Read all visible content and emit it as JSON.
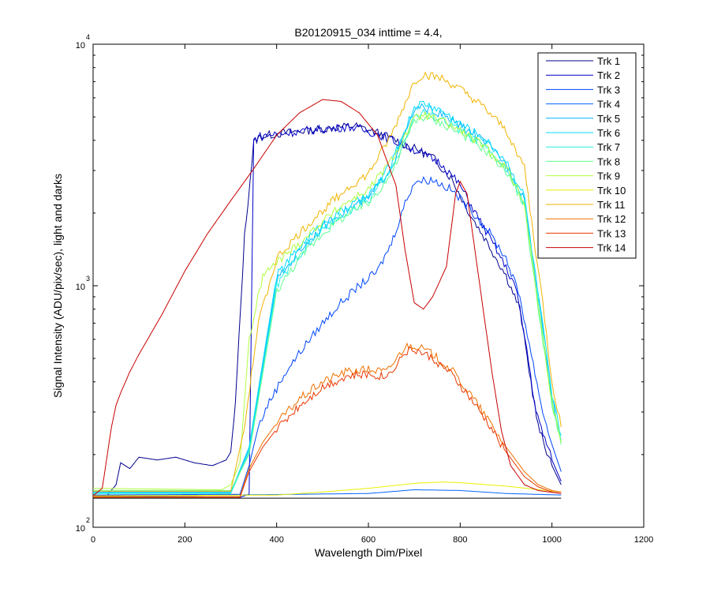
{
  "chart_data": {
    "type": "line",
    "title": "B20120915_034 inttime = 4.4,",
    "xlabel": "Wavelength Dim/Pixel",
    "ylabel": "Signal Intensity (ADU/pix/sec), light and darks",
    "xlim": [
      0,
      1200
    ],
    "ylim": [
      100,
      10000
    ],
    "yscale": "log",
    "grid": false,
    "legend_position": "top-right",
    "x_ticks": [
      "0",
      "200",
      "400",
      "600",
      "800",
      "1000",
      "1200"
    ],
    "y_ticks": [
      {
        "base": "10",
        "exp": "2"
      },
      {
        "base": "10",
        "exp": "3"
      },
      {
        "base": "10",
        "exp": "4"
      }
    ],
    "series": [
      {
        "name": "Trk 1",
        "color": "#00008f",
        "points": [
          [
            0,
            135
          ],
          [
            30,
            135
          ],
          [
            50,
            150
          ],
          [
            60,
            185
          ],
          [
            80,
            175
          ],
          [
            100,
            195
          ],
          [
            140,
            190
          ],
          [
            180,
            195
          ],
          [
            220,
            185
          ],
          [
            260,
            180
          ],
          [
            290,
            190
          ],
          [
            300,
            205
          ],
          [
            310,
            320
          ],
          [
            330,
            1600
          ],
          [
            350,
            3900
          ],
          [
            360,
            4100
          ],
          [
            380,
            4200
          ],
          [
            420,
            4300
          ],
          [
            470,
            4400
          ],
          [
            520,
            4500
          ],
          [
            570,
            4600
          ],
          [
            620,
            4300
          ],
          [
            660,
            4000
          ],
          [
            700,
            3700
          ],
          [
            740,
            3400
          ],
          [
            780,
            2800
          ],
          [
            820,
            2000
          ],
          [
            860,
            1500
          ],
          [
            900,
            1100
          ],
          [
            930,
            800
          ],
          [
            950,
            450
          ],
          [
            970,
            260
          ],
          [
            1000,
            180
          ],
          [
            1020,
            150
          ]
        ]
      },
      {
        "name": "Trk 2",
        "color": "#0000c8",
        "points": [
          [
            0,
            133
          ],
          [
            320,
            133
          ],
          [
            340,
            137
          ],
          [
            350,
            4000
          ],
          [
            360,
            4150
          ],
          [
            400,
            4250
          ],
          [
            450,
            4350
          ],
          [
            500,
            4450
          ],
          [
            560,
            4550
          ],
          [
            620,
            4250
          ],
          [
            680,
            3800
          ],
          [
            720,
            3500
          ],
          [
            760,
            3200
          ],
          [
            800,
            2600
          ],
          [
            840,
            1900
          ],
          [
            880,
            1400
          ],
          [
            920,
            1000
          ],
          [
            945,
            550
          ],
          [
            965,
            300
          ],
          [
            1000,
            190
          ],
          [
            1020,
            155
          ]
        ]
      },
      {
        "name": "Trk 3",
        "color": "#0046ff",
        "points": [
          [
            0,
            136
          ],
          [
            320,
            137
          ],
          [
            340,
            180
          ],
          [
            360,
            260
          ],
          [
            380,
            320
          ],
          [
            420,
            440
          ],
          [
            460,
            560
          ],
          [
            500,
            700
          ],
          [
            540,
            850
          ],
          [
            580,
            1000
          ],
          [
            620,
            1150
          ],
          [
            650,
            1500
          ],
          [
            680,
            2200
          ],
          [
            700,
            2700
          ],
          [
            740,
            2750
          ],
          [
            780,
            2500
          ],
          [
            820,
            2100
          ],
          [
            860,
            1700
          ],
          [
            900,
            1300
          ],
          [
            930,
            900
          ],
          [
            955,
            520
          ],
          [
            980,
            300
          ],
          [
            1000,
            220
          ],
          [
            1020,
            170
          ]
        ]
      },
      {
        "name": "Trk 4",
        "color": "#0064ff",
        "points": [
          [
            0,
            134
          ],
          [
            600,
            138
          ],
          [
            700,
            143
          ],
          [
            800,
            142
          ],
          [
            900,
            138
          ],
          [
            1020,
            136
          ]
        ]
      },
      {
        "name": "Trk 5",
        "color": "#00b4ff",
        "points": [
          [
            0,
            140
          ],
          [
            300,
            140
          ],
          [
            340,
            210
          ],
          [
            400,
            1050
          ],
          [
            450,
            1400
          ],
          [
            500,
            1750
          ],
          [
            550,
            2050
          ],
          [
            600,
            2300
          ],
          [
            650,
            3100
          ],
          [
            700,
            5300
          ],
          [
            720,
            5500
          ],
          [
            760,
            5100
          ],
          [
            800,
            4600
          ],
          [
            850,
            4000
          ],
          [
            900,
            3200
          ],
          [
            940,
            2300
          ],
          [
            960,
            1200
          ],
          [
            980,
            650
          ],
          [
            1000,
            340
          ],
          [
            1020,
            230
          ]
        ]
      },
      {
        "name": "Trk 6",
        "color": "#00dcff",
        "points": [
          [
            0,
            139
          ],
          [
            300,
            139
          ],
          [
            340,
            215
          ],
          [
            400,
            1100
          ],
          [
            450,
            1450
          ],
          [
            500,
            1800
          ],
          [
            550,
            2100
          ],
          [
            600,
            2350
          ],
          [
            650,
            3200
          ],
          [
            700,
            5500
          ],
          [
            720,
            5700
          ],
          [
            760,
            5300
          ],
          [
            800,
            4700
          ],
          [
            850,
            4100
          ],
          [
            900,
            3300
          ],
          [
            940,
            2350
          ],
          [
            960,
            1250
          ],
          [
            980,
            680
          ],
          [
            1000,
            350
          ],
          [
            1020,
            240
          ]
        ]
      },
      {
        "name": "Trk 7",
        "color": "#20f0e0",
        "points": [
          [
            0,
            138
          ],
          [
            300,
            138
          ],
          [
            340,
            205
          ],
          [
            400,
            1000
          ],
          [
            450,
            1350
          ],
          [
            500,
            1700
          ],
          [
            550,
            2000
          ],
          [
            600,
            2250
          ],
          [
            650,
            3000
          ],
          [
            700,
            5000
          ],
          [
            720,
            5200
          ],
          [
            760,
            4900
          ],
          [
            800,
            4400
          ],
          [
            850,
            3800
          ],
          [
            900,
            3050
          ],
          [
            940,
            2200
          ],
          [
            960,
            1150
          ],
          [
            980,
            620
          ],
          [
            1000,
            330
          ],
          [
            1020,
            225
          ]
        ]
      },
      {
        "name": "Trk 8",
        "color": "#60ff90",
        "points": [
          [
            0,
            142
          ],
          [
            300,
            142
          ],
          [
            340,
            200
          ],
          [
            400,
            950
          ],
          [
            450,
            1300
          ],
          [
            500,
            1650
          ],
          [
            550,
            1950
          ],
          [
            600,
            2200
          ],
          [
            650,
            2900
          ],
          [
            700,
            4800
          ],
          [
            720,
            5000
          ],
          [
            760,
            4700
          ],
          [
            800,
            4300
          ],
          [
            850,
            3700
          ],
          [
            900,
            3000
          ],
          [
            940,
            2150
          ],
          [
            960,
            1100
          ],
          [
            980,
            600
          ],
          [
            1000,
            320
          ],
          [
            1020,
            220
          ]
        ]
      },
      {
        "name": "Trk 9",
        "color": "#b0ff40",
        "points": [
          [
            0,
            145
          ],
          [
            280,
            143
          ],
          [
            300,
            150
          ],
          [
            320,
            185
          ],
          [
            340,
            600
          ],
          [
            370,
            1100
          ],
          [
            400,
            1250
          ],
          [
            450,
            1500
          ],
          [
            500,
            1850
          ],
          [
            550,
            2200
          ],
          [
            600,
            2500
          ],
          [
            650,
            3300
          ],
          [
            700,
            4900
          ],
          [
            720,
            5100
          ],
          [
            760,
            4800
          ],
          [
            800,
            4400
          ],
          [
            850,
            3800
          ],
          [
            900,
            3100
          ],
          [
            940,
            2200
          ],
          [
            960,
            1150
          ],
          [
            980,
            620
          ],
          [
            1000,
            330
          ],
          [
            1020,
            225
          ]
        ]
      },
      {
        "name": "Trk 10",
        "color": "#e8f000",
        "points": [
          [
            0,
            135
          ],
          [
            400,
            136
          ],
          [
            500,
            140
          ],
          [
            600,
            145
          ],
          [
            700,
            152
          ],
          [
            760,
            154
          ],
          [
            800,
            153
          ],
          [
            900,
            148
          ],
          [
            1020,
            140
          ]
        ]
      },
      {
        "name": "Trk 11",
        "color": "#f0b400",
        "points": [
          [
            0,
            141
          ],
          [
            300,
            141
          ],
          [
            330,
            260
          ],
          [
            360,
            700
          ],
          [
            400,
            1300
          ],
          [
            450,
            1650
          ],
          [
            500,
            2050
          ],
          [
            550,
            2500
          ],
          [
            600,
            2900
          ],
          [
            650,
            4200
          ],
          [
            700,
            7000
          ],
          [
            720,
            7500
          ],
          [
            760,
            7200
          ],
          [
            800,
            6500
          ],
          [
            850,
            5500
          ],
          [
            900,
            4400
          ],
          [
            940,
            3100
          ],
          [
            960,
            1600
          ],
          [
            980,
            850
          ],
          [
            1000,
            400
          ],
          [
            1020,
            260
          ]
        ]
      },
      {
        "name": "Trk 12",
        "color": "#f07000",
        "points": [
          [
            0,
            134
          ],
          [
            320,
            134
          ],
          [
            340,
            175
          ],
          [
            370,
            225
          ],
          [
            400,
            270
          ],
          [
            450,
            340
          ],
          [
            500,
            400
          ],
          [
            550,
            440
          ],
          [
            600,
            450
          ],
          [
            640,
            440
          ],
          [
            680,
            560
          ],
          [
            700,
            570
          ],
          [
            740,
            520
          ],
          [
            780,
            450
          ],
          [
            820,
            360
          ],
          [
            860,
            280
          ],
          [
            900,
            215
          ],
          [
            940,
            170
          ],
          [
            970,
            150
          ],
          [
            1000,
            142
          ],
          [
            1020,
            140
          ]
        ]
      },
      {
        "name": "Trk 13",
        "color": "#e83800",
        "points": [
          [
            0,
            133
          ],
          [
            320,
            133
          ],
          [
            340,
            170
          ],
          [
            370,
            215
          ],
          [
            400,
            255
          ],
          [
            450,
            320
          ],
          [
            500,
            380
          ],
          [
            550,
            420
          ],
          [
            600,
            430
          ],
          [
            640,
            420
          ],
          [
            680,
            530
          ],
          [
            700,
            545
          ],
          [
            740,
            500
          ],
          [
            780,
            430
          ],
          [
            820,
            345
          ],
          [
            860,
            270
          ],
          [
            900,
            205
          ],
          [
            940,
            162
          ],
          [
            970,
            147
          ],
          [
            1000,
            140
          ],
          [
            1020,
            138
          ]
        ]
      },
      {
        "name": "Trk 14",
        "color": "#c80000",
        "points": [
          [
            0,
            135
          ],
          [
            20,
            145
          ],
          [
            40,
            260
          ],
          [
            50,
            320
          ],
          [
            60,
            360
          ],
          [
            80,
            440
          ],
          [
            100,
            520
          ],
          [
            150,
            760
          ],
          [
            200,
            1150
          ],
          [
            250,
            1650
          ],
          [
            300,
            2250
          ],
          [
            350,
            3050
          ],
          [
            400,
            4200
          ],
          [
            450,
            5200
          ],
          [
            500,
            5900
          ],
          [
            540,
            5800
          ],
          [
            580,
            5200
          ],
          [
            620,
            4200
          ],
          [
            660,
            2600
          ],
          [
            680,
            1400
          ],
          [
            700,
            850
          ],
          [
            720,
            800
          ],
          [
            740,
            900
          ],
          [
            770,
            1200
          ],
          [
            790,
            2400
          ],
          [
            800,
            2700
          ],
          [
            815,
            2400
          ],
          [
            830,
            1500
          ],
          [
            850,
            800
          ],
          [
            870,
            430
          ],
          [
            890,
            250
          ],
          [
            910,
            180
          ],
          [
            940,
            150
          ],
          [
            970,
            142
          ],
          [
            1020,
            138
          ]
        ]
      },
      {
        "name": "",
        "color": "#000000",
        "points": [
          [
            0,
            132
          ],
          [
            1020,
            132
          ]
        ]
      }
    ]
  }
}
